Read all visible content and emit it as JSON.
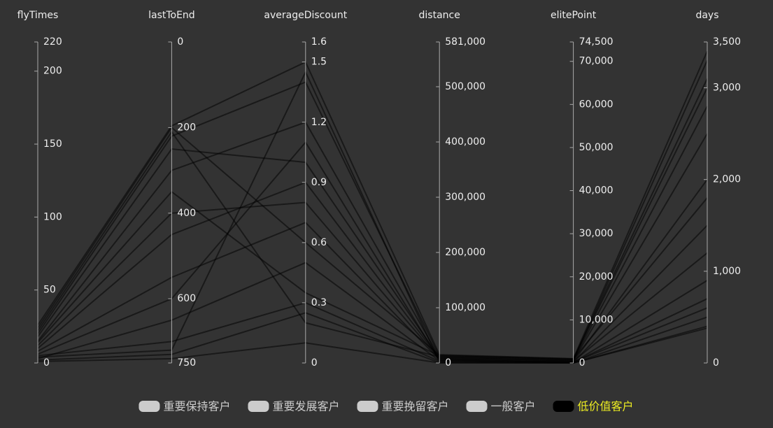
{
  "chart_data": {
    "type": "parallel",
    "axes": [
      {
        "name": "flyTimes",
        "lim": [
          0,
          220
        ],
        "ticks": [
          0,
          50,
          100,
          150,
          200,
          220
        ],
        "inverse": false
      },
      {
        "name": "lastToEnd",
        "lim": [
          0,
          750
        ],
        "ticks": [
          0,
          200,
          400,
          600,
          750
        ],
        "inverse": true
      },
      {
        "name": "averageDiscount",
        "lim": [
          0,
          1.6
        ],
        "ticks": [
          0,
          0.3,
          0.6,
          0.9,
          1.2,
          1.5,
          1.6
        ],
        "inverse": false
      },
      {
        "name": "distance",
        "lim": [
          0,
          581000
        ],
        "ticks": [
          0,
          {
            "value": 100000,
            "label": "100,000"
          },
          {
            "value": 200000,
            "label": "200,000"
          },
          {
            "value": 300000,
            "label": "300,000"
          },
          {
            "value": 400000,
            "label": "400,000"
          },
          {
            "value": 500000,
            "label": "500,000"
          },
          {
            "value": 581000,
            "label": "581,000"
          }
        ],
        "inverse": false
      },
      {
        "name": "elitePoint",
        "lim": [
          0,
          74500
        ],
        "ticks": [
          0,
          {
            "value": 10000,
            "label": "10,000"
          },
          {
            "value": 20000,
            "label": "20,000"
          },
          {
            "value": 30000,
            "label": "30,000"
          },
          {
            "value": 40000,
            "label": "40,000"
          },
          {
            "value": 50000,
            "label": "50,000"
          },
          {
            "value": 60000,
            "label": "60,000"
          },
          {
            "value": 70000,
            "label": "70,000"
          },
          {
            "value": 74500,
            "label": "74,500"
          }
        ],
        "inverse": false
      },
      {
        "name": "days",
        "lim": [
          0,
          3500
        ],
        "ticks": [
          0,
          {
            "value": 1000,
            "label": "1,000"
          },
          {
            "value": 2000,
            "label": "2,000"
          },
          {
            "value": 3000,
            "label": "3,000"
          },
          {
            "value": 3500,
            "label": "3,500"
          }
        ],
        "inverse": false
      }
    ],
    "legend_inactive_color": "#cccccc",
    "legend_active_text_color": "#eeee22",
    "series": [
      {
        "name": "重要保持客户",
        "color": "#c23531",
        "selected": false,
        "values": []
      },
      {
        "name": "重要发展客户",
        "color": "#2f4554",
        "selected": false,
        "values": []
      },
      {
        "name": "重要挽留客户",
        "color": "#61a0a8",
        "selected": false,
        "values": []
      },
      {
        "name": "一般客户",
        "color": "#d48265",
        "selected": false,
        "values": []
      },
      {
        "name": "低价值客户",
        "color": "#000000",
        "selected": true,
        "values": [
          [
            26,
            196,
            1.5,
            15000,
            1000,
            3400
          ],
          [
            2,
            730,
            0.25,
            500,
            0,
            380
          ],
          [
            20,
            220,
            1.4,
            12000,
            800,
            3000
          ],
          [
            5,
            700,
            0.3,
            3000,
            200,
            600
          ],
          [
            15,
            300,
            1.2,
            10000,
            500,
            2500
          ],
          [
            10,
            450,
            0.9,
            8000,
            300,
            2000
          ],
          [
            8,
            550,
            0.7,
            6000,
            200,
            1500
          ],
          [
            18,
            250,
            1.0,
            9000,
            600,
            2800
          ],
          [
            3,
            650,
            0.5,
            4000,
            100,
            900
          ],
          [
            12,
            400,
            0.8,
            7000,
            400,
            1200
          ],
          [
            22,
            210,
            0.2,
            11000,
            700,
            3300
          ],
          [
            4,
            720,
            1.45,
            2000,
            0,
            500
          ],
          [
            14,
            350,
            0.35,
            13000,
            900,
            1800
          ],
          [
            6,
            600,
            1.1,
            5000,
            150,
            700
          ],
          [
            24,
            200,
            0.6,
            14000,
            950,
            3100
          ],
          [
            1,
            740,
            0.1,
            200,
            0,
            400
          ]
        ]
      }
    ]
  }
}
